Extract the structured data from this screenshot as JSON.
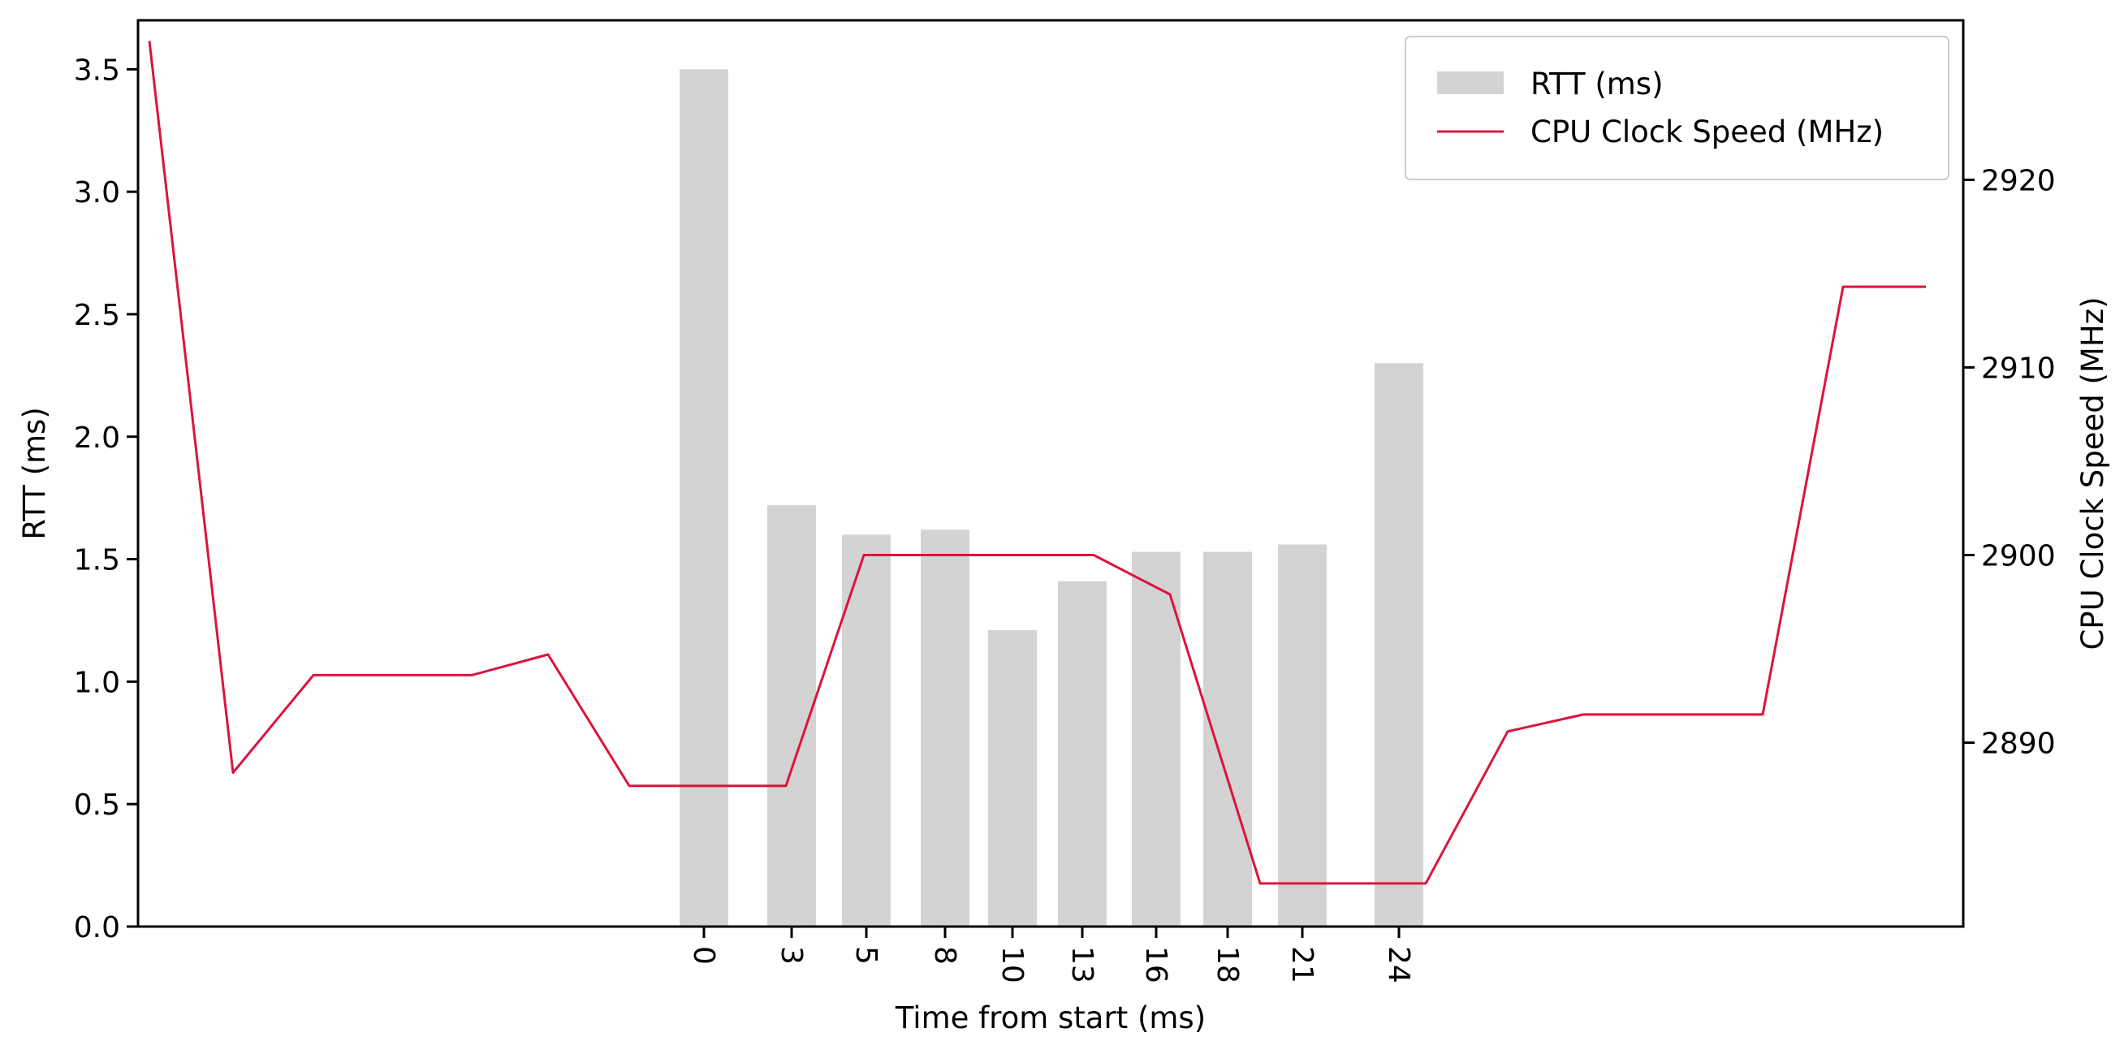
{
  "chart_data": {
    "type": "bar",
    "xlabel": "Time from start (ms)",
    "ylabel": "RTT (ms)",
    "y2label": "CPU Clock Speed (MHz)",
    "ylim": [
      0,
      3.7
    ],
    "y2lim": [
      2880.2,
      2928.5
    ],
    "yticks": [
      "0.0",
      "0.5",
      "1.0",
      "1.5",
      "2.0",
      "2.5",
      "3.0",
      "3.5"
    ],
    "y2ticks": [
      "2890",
      "2900",
      "2910",
      "2920"
    ],
    "grid": false,
    "legend": {
      "position": "top-right"
    },
    "x_tick_labels": [
      "0",
      "3",
      "5",
      "8",
      "10",
      "13",
      "16",
      "18",
      "21",
      "24"
    ],
    "bars": {
      "name": "RTT (ms)",
      "color": "#d3d3d3",
      "values": [
        3.5,
        1.72,
        1.6,
        1.62,
        1.21,
        1.41,
        1.53,
        1.53,
        1.56,
        2.3
      ]
    },
    "line": {
      "name": "CPU Clock Speed (MHz)",
      "color": "#dc143c",
      "axis": "right",
      "values": [
        2927.4,
        2888.4,
        2893.6,
        2893.6,
        2894.7,
        2887.7,
        2887.7,
        2887.7,
        2900.0,
        2900.0,
        2900.0,
        2900.0,
        2897.9,
        2882.5,
        2882.5,
        2882.5,
        2890.6,
        2891.5,
        2891.5,
        2891.5,
        2914.3,
        2914.3
      ]
    }
  }
}
